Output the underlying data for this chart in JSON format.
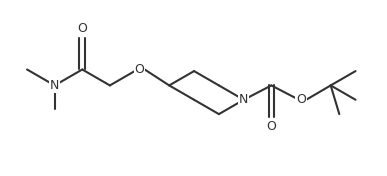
{
  "bg_color": "#ffffff",
  "line_color": "#333333",
  "line_width": 1.5,
  "figsize": [
    3.87,
    1.76
  ],
  "dpi": 100,
  "font_size": 9,
  "xlim": [
    0,
    7.5
  ],
  "ylim": [
    0,
    3.2
  ]
}
